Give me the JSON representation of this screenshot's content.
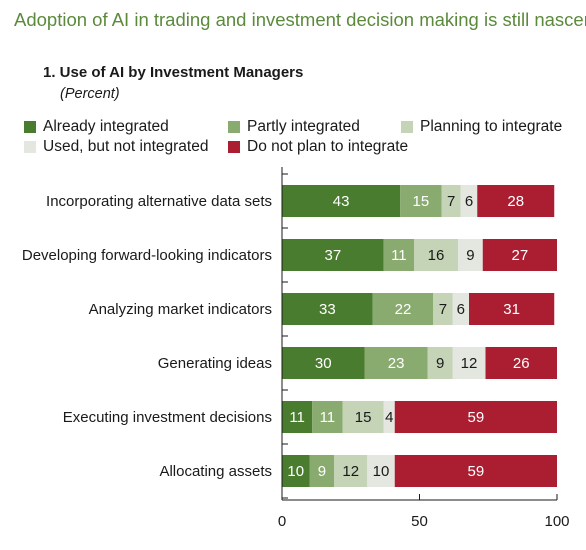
{
  "headline": "Adoption of AI in trading and investment decision making is still nascent.",
  "chart_data": {
    "type": "bar",
    "orientation": "horizontal",
    "stacked": true,
    "title": "1. Use of AI by Investment Managers",
    "subtitle": "(Percent)",
    "categories": [
      "Incorporating alternative data sets",
      "Developing forward-looking indicators",
      "Analyzing market indicators",
      "Generating ideas",
      "Executing investment decisions",
      "Allocating assets"
    ],
    "series": [
      {
        "name": "Already integrated",
        "color": "#4a7c2f",
        "label_color": "#ffffff",
        "values": [
          43,
          37,
          33,
          30,
          11,
          10
        ]
      },
      {
        "name": "Partly integrated",
        "color": "#8aab70",
        "label_color": "#ffffff",
        "values": [
          15,
          11,
          22,
          23,
          11,
          9
        ]
      },
      {
        "name": "Planning to integrate",
        "color": "#c5d4b6",
        "label_color": "#1a1a1a",
        "values": [
          7,
          16,
          7,
          9,
          15,
          12
        ]
      },
      {
        "name": "Used, but not integrated",
        "color": "#e4e6e0",
        "label_color": "#1a1a1a",
        "values": [
          6,
          9,
          6,
          12,
          4,
          10
        ]
      },
      {
        "name": "Do not plan to integrate",
        "color": "#ab1e32",
        "label_color": "#ffffff",
        "values": [
          28,
          27,
          31,
          26,
          59,
          59
        ]
      }
    ],
    "xlim": [
      0,
      100
    ],
    "xticks": [
      0,
      50,
      100
    ],
    "xlabel": "",
    "ylabel": "",
    "grid": false,
    "legend": "top"
  }
}
